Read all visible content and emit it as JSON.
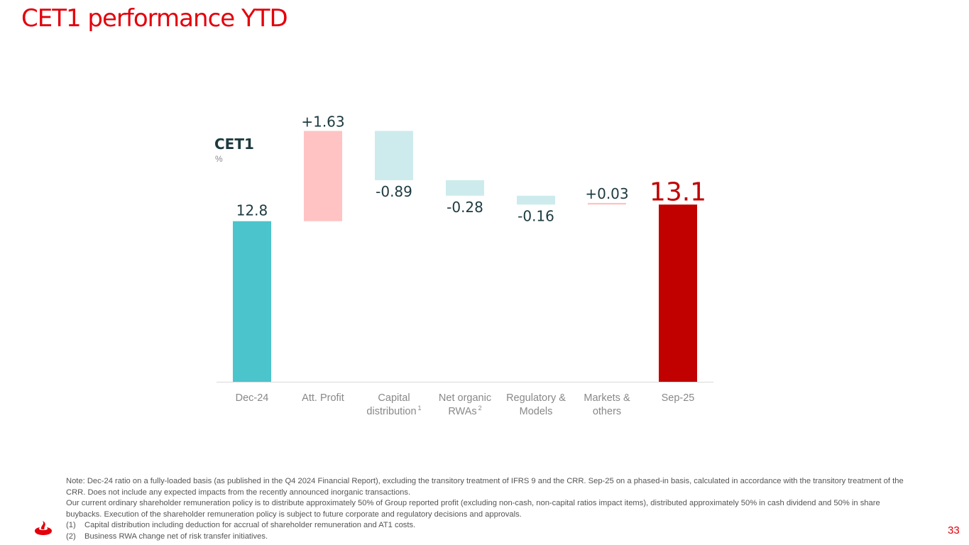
{
  "title": "CET1 performance YTD",
  "chart_data": {
    "type": "waterfall",
    "title": "CET1",
    "unit": "%",
    "ylim": [
      9.9,
      13.77
    ],
    "categories": [
      [
        "Dec-24"
      ],
      [
        "Att. Profit"
      ],
      [
        "Capital",
        "distribution"
      ],
      [
        "Net organic",
        "RWAs"
      ],
      [
        "Regulatory &",
        "Models"
      ],
      [
        "Markets &",
        "others"
      ],
      [
        "Sep-25"
      ]
    ],
    "footnote_marks": [
      "",
      "",
      "1",
      "2",
      "",
      "",
      ""
    ],
    "values": [
      12.8,
      1.63,
      -0.89,
      -0.28,
      -0.16,
      0.03,
      13.1
    ],
    "labels": [
      "12.8",
      "+1.63",
      "-0.89",
      "-0.28",
      "-0.16",
      "+0.03",
      "13.1"
    ],
    "kinds": [
      "total",
      "delta",
      "delta",
      "delta",
      "delta",
      "delta",
      "total"
    ],
    "colors": {
      "start_total": "#4bc4cb",
      "end_total": "#c10000",
      "increase": "#ffc3c3",
      "decrease": "#cdebec",
      "label": "#1d3a40",
      "end_label": "#c10000",
      "axis": "#d9d9d9",
      "tick": "#888888"
    }
  },
  "notes": {
    "paragraph1": "Note: Dec-24 ratio on a fully-loaded basis (as published in the Q4 2024 Financial Report), excluding the transitory treatment of IFRS 9 and the CRR. Sep-25 on a phased-in basis, calculated in accordance with the transitory treatment of the CRR. Does not include any expected impacts from the recently announced inorganic transactions.",
    "paragraph2": "Our current ordinary shareholder remuneration policy is to distribute approximately 50% of Group reported profit (excluding non-cash, non-capital ratios impact items), distributed approximately 50% in cash dividend and 50% in share buybacks. Execution of the shareholder remuneration policy is subject to future corporate and regulatory decisions and approvals.",
    "footnotes": [
      {
        "num": "(1)",
        "text": "Capital distribution including deduction for accrual of shareholder remuneration and AT1 costs."
      },
      {
        "num": "(2)",
        "text": "Business RWA change net of risk transfer initiatives."
      }
    ]
  },
  "page_number": "33",
  "logo_icon": "santander-flame-icon"
}
